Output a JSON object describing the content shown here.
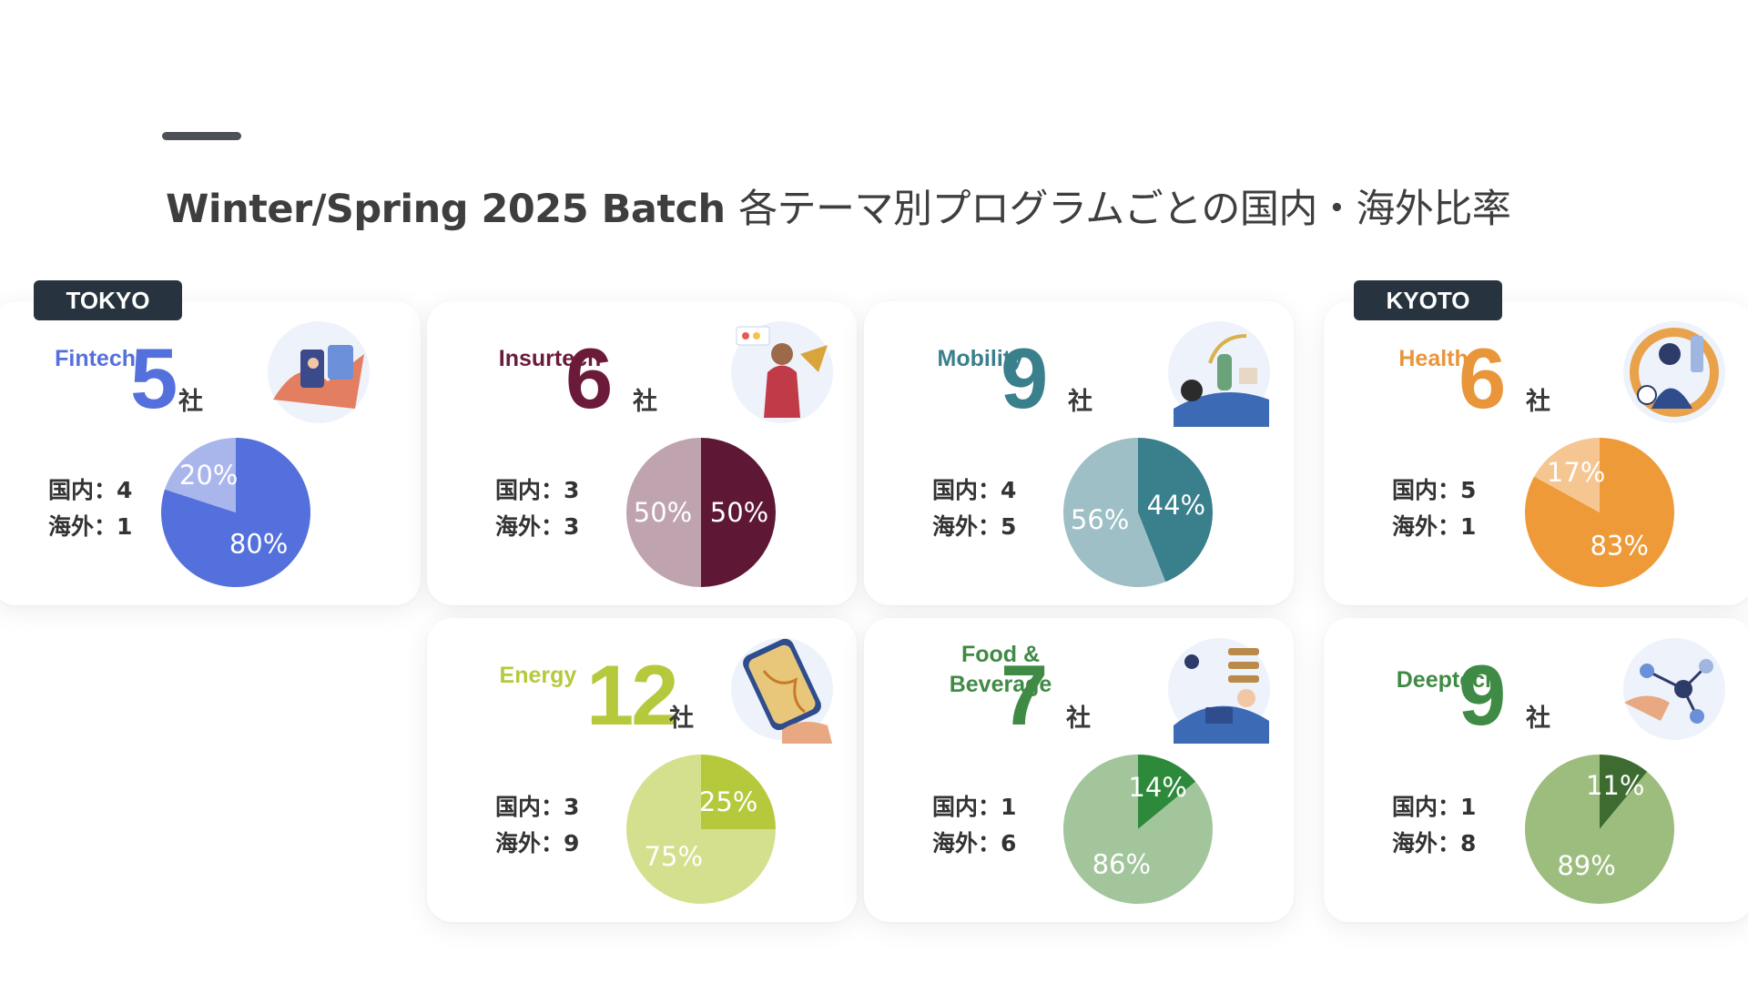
{
  "title": {
    "latin": "Winter/Spring 2025 Batch",
    "japanese": "各テーマ別プログラムごとの国内・海外比率"
  },
  "regions": {
    "tokyo": "TOKYO",
    "kyoto": "KYOTO"
  },
  "unit_label": "社",
  "domestic_label": "国内：",
  "overseas_label": "海外：",
  "chart_data": [
    {
      "type": "pie",
      "theme": "Fintech",
      "region": "TOKYO",
      "companies": "5",
      "domestic": "4",
      "overseas": "1",
      "slices": [
        {
          "name": "国内",
          "value": 80,
          "label": "80%",
          "color": "#5470dc"
        },
        {
          "name": "海外",
          "value": 20,
          "label": "20%",
          "color": "#a9b6ec"
        }
      ],
      "theme_color": "#5470dc",
      "icon": "fintech-illustration"
    },
    {
      "type": "pie",
      "theme": "Insurtech",
      "region": "TOKYO",
      "companies": "6",
      "domestic": "3",
      "overseas": "3",
      "slices": [
        {
          "name": "国内",
          "value": 50,
          "label": "50%",
          "color": "#5e1735"
        },
        {
          "name": "海外",
          "value": 50,
          "label": "50%",
          "color": "#bfa3ae"
        }
      ],
      "theme_color": "#6b1a3a",
      "icon": "insurtech-illustration"
    },
    {
      "type": "pie",
      "theme": "Mobility",
      "region": "TOKYO",
      "companies": "9",
      "domestic": "4",
      "overseas": "5",
      "slices": [
        {
          "name": "国内",
          "value": 44,
          "label": "44%",
          "color": "#3a7f8c"
        },
        {
          "name": "海外",
          "value": 56,
          "label": "56%",
          "color": "#9dbfc5"
        }
      ],
      "theme_color": "#3a7f8c",
      "icon": "mobility-illustration"
    },
    {
      "type": "pie",
      "theme": "Health",
      "region": "KYOTO",
      "companies": "6",
      "domestic": "5",
      "overseas": "1",
      "slices": [
        {
          "name": "国内",
          "value": 83,
          "label": "83%",
          "color": "#ef9a38"
        },
        {
          "name": "海外",
          "value": 17,
          "label": "17%",
          "color": "#f6c692"
        }
      ],
      "theme_color": "#e9953a",
      "icon": "health-illustration"
    },
    {
      "type": "pie",
      "theme": "Energy",
      "region": "TOKYO",
      "companies": "12",
      "domestic": "3",
      "overseas": "9",
      "slices": [
        {
          "name": "国内",
          "value": 25,
          "label": "25%",
          "color": "#b6c93d"
        },
        {
          "name": "海外",
          "value": 75,
          "label": "75%",
          "color": "#d4e08e"
        }
      ],
      "theme_color": "#b6c93d",
      "icon": "energy-illustration"
    },
    {
      "type": "pie",
      "theme": "Food & Beverage",
      "region": "TOKYO",
      "companies": "7",
      "domestic": "1",
      "overseas": "6",
      "slices": [
        {
          "name": "国内",
          "value": 14,
          "label": "14%",
          "color": "#2e8a3b"
        },
        {
          "name": "海外",
          "value": 86,
          "label": "86%",
          "color": "#a2c59c"
        }
      ],
      "theme_color": "#3f8a44",
      "icon": "food-beverage-illustration"
    },
    {
      "type": "pie",
      "theme": "Deeptech",
      "region": "KYOTO",
      "companies": "9",
      "domestic": "1",
      "overseas": "8",
      "slices": [
        {
          "name": "国内",
          "value": 11,
          "label": "11%",
          "color": "#3d6b30"
        },
        {
          "name": "海外",
          "value": 89,
          "label": "89%",
          "color": "#9dbd7e"
        }
      ],
      "theme_color": "#3f8a44",
      "icon": "deeptech-illustration"
    }
  ]
}
